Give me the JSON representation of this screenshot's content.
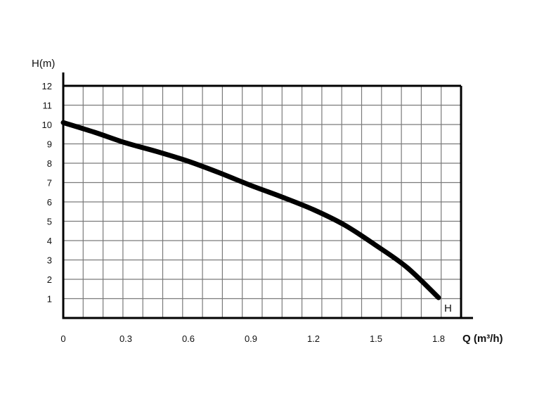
{
  "chart_data": {
    "type": "line",
    "title": "",
    "ylabel": "H(m)",
    "xlabel_main": "Q",
    "xlabel_unit": "(m³/h)",
    "x_ticks": [
      "0",
      "0.3",
      "0.6",
      "0.9",
      "1.2",
      "1.5",
      "1.8"
    ],
    "x_tick_values": [
      0,
      0.3,
      0.6,
      0.9,
      1.2,
      1.5,
      1.8
    ],
    "y_ticks": [
      "1",
      "2",
      "3",
      "4",
      "5",
      "6",
      "7",
      "8",
      "9",
      "10",
      "11",
      "12"
    ],
    "y_tick_values": [
      1,
      2,
      3,
      4,
      5,
      6,
      7,
      8,
      9,
      10,
      11,
      12
    ],
    "xlim": [
      0,
      1.8
    ],
    "ylim": [
      0,
      12
    ],
    "grid": true,
    "series": [
      {
        "name": "H",
        "color": "#000000",
        "x": [
          0,
          0.15,
          0.3,
          0.45,
          0.6,
          0.75,
          0.9,
          1.05,
          1.2,
          1.35,
          1.5,
          1.65,
          1.8
        ],
        "y": [
          10.1,
          9.6,
          9.05,
          8.6,
          8.1,
          7.5,
          6.85,
          6.25,
          5.6,
          4.8,
          3.75,
          2.6,
          1.05
        ]
      }
    ]
  }
}
